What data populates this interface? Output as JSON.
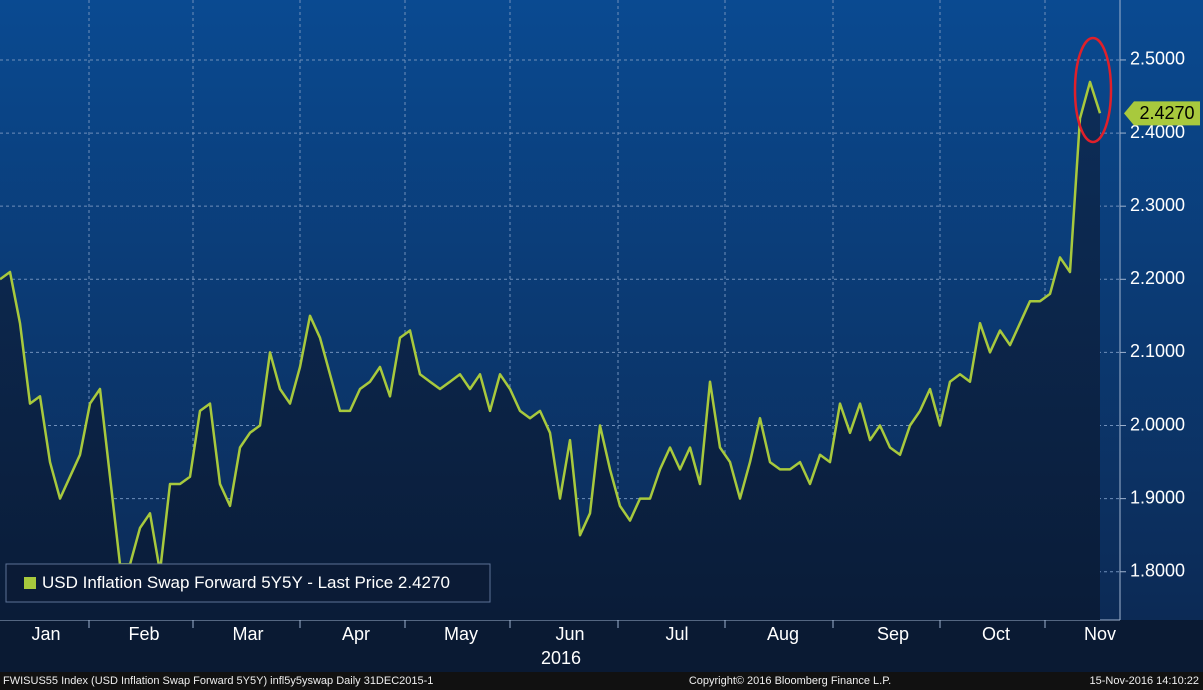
{
  "chart_data": {
    "type": "line",
    "series": [
      {
        "name": "USD Inflation Swap Forward 5Y5Y",
        "color": "#a8c93d",
        "values": [
          2.2,
          2.21,
          2.14,
          2.03,
          2.04,
          1.95,
          1.9,
          1.93,
          1.96,
          2.03,
          2.05,
          1.93,
          1.81,
          1.81,
          1.86,
          1.88,
          1.8,
          1.92,
          1.92,
          1.93,
          2.02,
          2.03,
          1.92,
          1.89,
          1.97,
          1.99,
          2.0,
          2.1,
          2.05,
          2.03,
          2.08,
          2.15,
          2.12,
          2.07,
          2.02,
          2.02,
          2.05,
          2.06,
          2.08,
          2.04,
          2.12,
          2.13,
          2.07,
          2.06,
          2.05,
          2.06,
          2.07,
          2.05,
          2.07,
          2.02,
          2.07,
          2.05,
          2.02,
          2.01,
          2.02,
          1.99,
          1.9,
          1.98,
          1.85,
          1.88,
          2.0,
          1.94,
          1.89,
          1.87,
          1.9,
          1.9,
          1.94,
          1.97,
          1.94,
          1.97,
          1.92,
          2.06,
          1.97,
          1.95,
          1.9,
          1.95,
          2.01,
          1.95,
          1.94,
          1.94,
          1.95,
          1.92,
          1.96,
          1.95,
          2.03,
          1.99,
          2.03,
          1.98,
          2.0,
          1.97,
          1.96,
          2.0,
          2.02,
          2.05,
          2.0,
          2.06,
          2.07,
          2.06,
          2.14,
          2.1,
          2.13,
          2.11,
          2.14,
          2.17,
          2.17,
          2.18,
          2.23,
          2.21,
          2.42,
          2.47,
          2.427
        ]
      }
    ],
    "legend_note": "- Last Price 2.4270",
    "last_label": "2.4270",
    "xlim": [
      0,
      112
    ],
    "xticks": [
      {
        "value": 4.6,
        "label": "Jan"
      },
      {
        "value": 14.4,
        "label": "Feb"
      },
      {
        "value": 24.8,
        "label": "Mar"
      },
      {
        "value": 35.6,
        "label": "Apr"
      },
      {
        "value": 46.1,
        "label": "May"
      },
      {
        "value": 57,
        "label": "Jun"
      },
      {
        "value": 67.7,
        "label": "Jul"
      },
      {
        "value": 78.3,
        "label": "Aug"
      },
      {
        "value": 89.3,
        "label": "Sep"
      },
      {
        "value": 99.6,
        "label": "Oct"
      },
      {
        "value": 110,
        "label": "Nov"
      }
    ],
    "xgrid": [
      8.9,
      19.3,
      30,
      40.5,
      51,
      61.8,
      72.5,
      83.3,
      94,
      104.5
    ],
    "year_label": "2016",
    "ylim": [
      1.734,
      2.582
    ],
    "yticks": [
      {
        "value": 1.8,
        "label": "1.8000"
      },
      {
        "value": 1.9,
        "label": "1.9000"
      },
      {
        "value": 2.0,
        "label": "2.0000"
      },
      {
        "value": 2.1,
        "label": "2.1000"
      },
      {
        "value": 2.2,
        "label": "2.2000"
      },
      {
        "value": 2.3,
        "label": "2.3000"
      },
      {
        "value": 2.4,
        "label": "2.4000"
      },
      {
        "value": 2.5,
        "label": "2.5000"
      }
    ],
    "grid": true,
    "footer_left": "FWISUS55 Index (USD Inflation Swap Forward 5Y5Y) infl5y5yswap  Daily 31DEC2015-1",
    "footer_center": "Copyright© 2016 Bloomberg Finance L.P.",
    "footer_right": "15-Nov-2016 14:10:22"
  }
}
